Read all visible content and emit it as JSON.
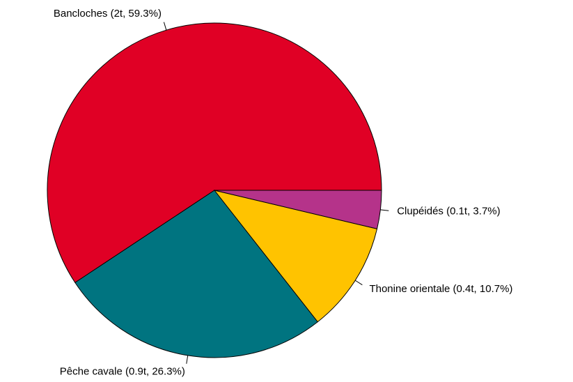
{
  "chart_data": {
    "type": "pie",
    "categories": [
      "Bancloches (2t, 59.3%)",
      "Pêche cavale (0.9t, 26.3%)",
      "Thonine orientale (0.4t, 10.7%)",
      "Clupéidés (0.1t, 3.7%)"
    ],
    "values": [
      59.3,
      26.3,
      10.7,
      3.7
    ],
    "colors": [
      "#e00025",
      "#007480",
      "#ffc300",
      "#b5338a"
    ]
  }
}
